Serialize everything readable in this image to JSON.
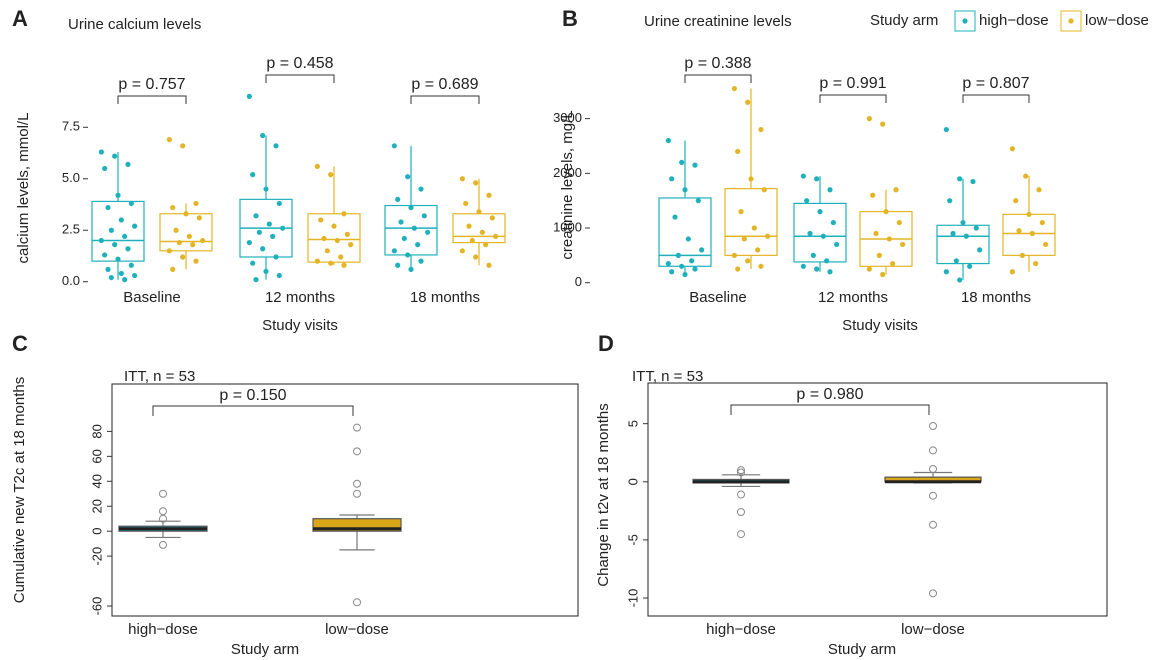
{
  "chart_data": [
    {
      "type": "box",
      "panel": "A",
      "title": "Urine calcium levels",
      "ylabel": "calcium levels, mmol/L",
      "xlabel": "Study visits",
      "categories": [
        "Baseline",
        "12 months",
        "18 months"
      ],
      "ylim": [
        -0.5,
        9.7
      ],
      "yticks": [
        {
          "value": 0,
          "label": "0.0"
        },
        2.5,
        {
          "value": 5,
          "label": "5.0"
        },
        7.5
      ],
      "pvalues": [
        "p = 0.757",
        "p = 0.458",
        "p = 0.689"
      ],
      "series": [
        {
          "color": "#1fb1bb",
          "boxes": [
            {
              "min": 0.1,
              "q1": 1.0,
              "median": 2.0,
              "q3": 3.9,
              "max": 6.3,
              "points": [
                6.3,
                6.1,
                5.7,
                5.5,
                4.2,
                3.8,
                3.6,
                3.0,
                2.7,
                2.5,
                2.2,
                2.0,
                1.8,
                1.6,
                1.3,
                1.1,
                0.8,
                0.6,
                0.4,
                0.3,
                0.2,
                0.1
              ]
            },
            {
              "min": 0.1,
              "q1": 1.2,
              "median": 2.6,
              "q3": 4.0,
              "max": 7.1,
              "points": [
                9.0,
                7.1,
                6.6,
                5.2,
                4.5,
                3.8,
                3.2,
                2.8,
                2.6,
                2.4,
                2.2,
                1.9,
                1.6,
                1.2,
                0.9,
                0.5,
                0.3,
                0.1
              ]
            },
            {
              "min": 0.6,
              "q1": 1.3,
              "median": 2.6,
              "q3": 3.7,
              "max": 6.6,
              "points": [
                6.6,
                5.1,
                4.5,
                4.0,
                3.6,
                3.2,
                2.9,
                2.6,
                2.4,
                2.1,
                1.8,
                1.5,
                1.3,
                1.0,
                0.8,
                0.6
              ]
            }
          ]
        },
        {
          "color": "#e3b526",
          "boxes": [
            {
              "min": 0.6,
              "q1": 1.5,
              "median": 1.95,
              "q3": 3.3,
              "max": 3.8,
              "points": [
                6.9,
                6.6,
                3.8,
                3.6,
                3.3,
                3.1,
                2.5,
                2.2,
                2.0,
                1.9,
                1.8,
                1.5,
                1.2,
                1.0,
                0.6
              ]
            },
            {
              "min": 0.8,
              "q1": 0.95,
              "median": 2.05,
              "q3": 3.3,
              "max": 5.6,
              "points": [
                5.6,
                5.2,
                3.3,
                3.0,
                2.7,
                2.3,
                2.1,
                2.0,
                1.8,
                1.5,
                1.2,
                1.0,
                0.9,
                0.8
              ]
            },
            {
              "min": 0.8,
              "q1": 1.9,
              "median": 2.2,
              "q3": 3.3,
              "max": 5.0,
              "points": [
                5.0,
                4.8,
                4.2,
                3.8,
                3.4,
                3.1,
                2.7,
                2.4,
                2.2,
                2.0,
                1.8,
                1.5,
                1.2,
                0.8
              ]
            }
          ]
        }
      ]
    },
    {
      "type": "box",
      "panel": "B",
      "title": "Urine creatinine levels",
      "ylabel": "creatinine levels, mg/L",
      "xlabel": "Study visits",
      "legend_title": "Study arm",
      "categories": [
        "Baseline",
        "12 months",
        "18 months"
      ],
      "ylim": [
        -170,
        3670
      ],
      "yticks": [
        0,
        1000,
        2000,
        3000
      ],
      "pvalues": [
        "p = 0.388",
        "p = 0.991",
        "p = 0.807"
      ],
      "series": [
        {
          "name": "high−dose",
          "color": "#1fb1bb",
          "boxes": [
            {
              "min": 150,
              "q1": 300,
              "median": 500,
              "q3": 1550,
              "max": 2600,
              "points": [
                2600,
                2200,
                2150,
                1900,
                1700,
                1500,
                1200,
                800,
                600,
                500,
                400,
                350,
                300,
                250,
                200,
                150
              ]
            },
            {
              "min": 200,
              "q1": 380,
              "median": 850,
              "q3": 1450,
              "max": 1950,
              "points": [
                1950,
                1900,
                1700,
                1500,
                1300,
                1100,
                900,
                850,
                700,
                500,
                400,
                300,
                250,
                200
              ]
            },
            {
              "min": 50,
              "q1": 350,
              "median": 850,
              "q3": 1050,
              "max": 1900,
              "points": [
                2800,
                1900,
                1850,
                1500,
                1100,
                1000,
                900,
                850,
                600,
                400,
                300,
                200,
                50
              ]
            }
          ]
        },
        {
          "name": "low−dose",
          "color": "#e3b526",
          "boxes": [
            {
              "min": 250,
              "q1": 500,
              "median": 850,
              "q3": 1720,
              "max": 3550,
              "points": [
                3550,
                3300,
                2800,
                2400,
                1900,
                1700,
                1300,
                1000,
                850,
                800,
                600,
                500,
                400,
                300,
                250
              ]
            },
            {
              "min": 150,
              "q1": 300,
              "median": 800,
              "q3": 1300,
              "max": 1700,
              "points": [
                3000,
                2900,
                1700,
                1600,
                1300,
                1100,
                900,
                800,
                700,
                500,
                350,
                250,
                150
              ]
            },
            {
              "min": 200,
              "q1": 500,
              "median": 900,
              "q3": 1250,
              "max": 1950,
              "points": [
                2450,
                1950,
                1700,
                1500,
                1250,
                1100,
                950,
                900,
                700,
                500,
                350,
                200
              ]
            }
          ]
        }
      ]
    },
    {
      "type": "box",
      "panel": "C",
      "subtitle": "ITT, n = 53",
      "ylabel": "Cumulative new  T2c at 18 months",
      "xlabel": "Study arm",
      "categories": [
        "high−dose",
        "low−dose"
      ],
      "colors": [
        "#1a93a6",
        "#d9a619"
      ],
      "ylim": [
        -68,
        118
      ],
      "yticks": [
        -60,
        -20,
        0,
        20,
        40,
        60,
        80
      ],
      "pvalues": [
        "p = 0.150"
      ],
      "boxes": [
        {
          "min": -5,
          "q1": 0,
          "median": 2,
          "q3": 4,
          "max": 8,
          "outliers": [
            30,
            16,
            10,
            -11
          ]
        },
        {
          "min": -15,
          "q1": 0,
          "median": 2,
          "q3": 10,
          "max": 13,
          "outliers": [
            83,
            64,
            38,
            30,
            -57
          ]
        }
      ]
    },
    {
      "type": "box",
      "panel": "D",
      "subtitle": "ITT, n = 53",
      "ylabel": "Change in t2v at 18 months",
      "xlabel": "Study arm",
      "categories": [
        "high−dose",
        "low−dose"
      ],
      "colors": [
        "#1a93a6",
        "#d9a619"
      ],
      "ylim": [
        -11.55,
        8.5
      ],
      "yticks": [
        -10,
        -5,
        0,
        5
      ],
      "pvalues": [
        "p = 0.980"
      ],
      "boxes": [
        {
          "min": -0.4,
          "q1": -0.1,
          "median": 0,
          "q3": 0.2,
          "max": 0.6,
          "outliers": [
            1.0,
            0.8,
            -1.1,
            -2.6,
            -4.5
          ]
        },
        {
          "min": -0.1,
          "q1": 0,
          "median": 0,
          "q3": 0.4,
          "max": 0.8,
          "outliers": [
            4.8,
            2.7,
            1.1,
            -1.2,
            -3.7,
            -9.6
          ]
        }
      ]
    }
  ]
}
